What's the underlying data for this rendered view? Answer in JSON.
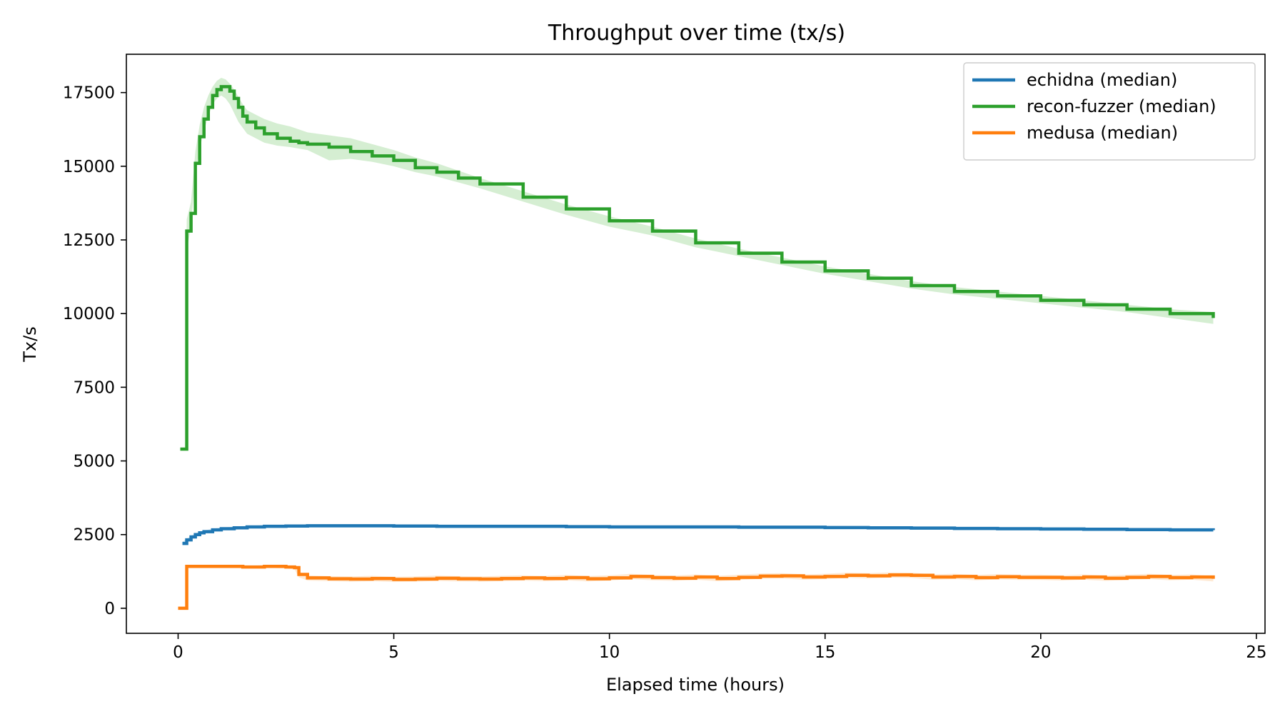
{
  "chart_data": {
    "type": "line",
    "title": "Throughput over time (tx/s)",
    "xlabel": "Elapsed time (hours)",
    "ylabel": "Tx/s",
    "xlim": [
      -1.2,
      25.2
    ],
    "ylim": [
      -850,
      18800
    ],
    "xticks": [
      0,
      5,
      10,
      15,
      20,
      25
    ],
    "yticks": [
      0,
      2500,
      5000,
      7500,
      10000,
      12500,
      15000,
      17500
    ],
    "grid": false,
    "legend_position": "top-right",
    "series": [
      {
        "name": "echidna (median)",
        "color": "#1f77b4",
        "band_color": "#9ecae1",
        "x": [
          0.1,
          0.2,
          0.3,
          0.4,
          0.5,
          0.6,
          0.8,
          1.0,
          1.3,
          1.6,
          2.0,
          2.5,
          3.0,
          4.0,
          5.0,
          6.0,
          7.0,
          8.0,
          9.0,
          10.0,
          11.0,
          12.0,
          13.0,
          14.0,
          15.0,
          16.0,
          17.0,
          18.0,
          19.0,
          20.0,
          21.0,
          22.0,
          23.0,
          24.0
        ],
        "y": [
          2200,
          2320,
          2420,
          2500,
          2560,
          2600,
          2660,
          2700,
          2730,
          2760,
          2780,
          2790,
          2800,
          2800,
          2790,
          2780,
          2780,
          2780,
          2770,
          2760,
          2760,
          2760,
          2750,
          2750,
          2740,
          2730,
          2720,
          2710,
          2700,
          2690,
          2680,
          2670,
          2660,
          2650
        ],
        "lower": [
          2150,
          2280,
          2380,
          2460,
          2520,
          2560,
          2620,
          2660,
          2690,
          2720,
          2740,
          2750,
          2760,
          2760,
          2750,
          2740,
          2740,
          2740,
          2730,
          2720,
          2720,
          2720,
          2710,
          2710,
          2700,
          2690,
          2680,
          2670,
          2660,
          2650,
          2640,
          2630,
          2620,
          2610
        ],
        "upper": [
          2250,
          2360,
          2460,
          2540,
          2600,
          2640,
          2700,
          2740,
          2770,
          2800,
          2820,
          2830,
          2840,
          2840,
          2830,
          2830,
          2830,
          2830,
          2820,
          2810,
          2810,
          2810,
          2800,
          2800,
          2790,
          2780,
          2770,
          2760,
          2750,
          2740,
          2730,
          2720,
          2710,
          2700
        ]
      },
      {
        "name": "recon-fuzzer (median)",
        "color": "#2ca02c",
        "band_color": "#a1d99b",
        "x": [
          0.05,
          0.15,
          0.2,
          0.3,
          0.4,
          0.5,
          0.6,
          0.7,
          0.8,
          0.9,
          1.0,
          1.1,
          1.2,
          1.3,
          1.4,
          1.5,
          1.6,
          1.8,
          2.0,
          2.3,
          2.6,
          2.8,
          3.0,
          3.5,
          4.0,
          4.5,
          5.0,
          5.5,
          6.0,
          6.5,
          7.0,
          8.0,
          9.0,
          10.0,
          11.0,
          12.0,
          13.0,
          14.0,
          15.0,
          16.0,
          17.0,
          18.0,
          19.0,
          20.0,
          21.0,
          22.0,
          23.0,
          24.0
        ],
        "y": [
          5400,
          5400,
          12800,
          13400,
          15100,
          16000,
          16600,
          17000,
          17400,
          17600,
          17700,
          17700,
          17550,
          17300,
          17000,
          16700,
          16500,
          16300,
          16100,
          15950,
          15850,
          15800,
          15750,
          15650,
          15500,
          15350,
          15200,
          14950,
          14800,
          14600,
          14400,
          13950,
          13550,
          13150,
          12800,
          12400,
          12050,
          11750,
          11450,
          11200,
          10950,
          10750,
          10600,
          10450,
          10300,
          10150,
          10000,
          9850
        ],
        "lower": [
          5400,
          5400,
          12100,
          13000,
          14700,
          15600,
          16200,
          16700,
          17100,
          17300,
          17400,
          17300,
          17100,
          16800,
          16500,
          16300,
          16100,
          15950,
          15800,
          15700,
          15650,
          15600,
          15550,
          15200,
          15250,
          15150,
          15000,
          14800,
          14650,
          14450,
          14250,
          13800,
          13350,
          12950,
          12650,
          12250,
          11950,
          11650,
          11350,
          11100,
          10850,
          10650,
          10500,
          10350,
          10200,
          10050,
          9850,
          9650
        ],
        "upper": [
          5400,
          5400,
          13200,
          13800,
          15500,
          16400,
          17000,
          17400,
          17700,
          17900,
          18000,
          17950,
          17800,
          17600,
          17350,
          17100,
          16900,
          16750,
          16600,
          16450,
          16350,
          16250,
          16150,
          16050,
          15950,
          15750,
          15550,
          15300,
          15100,
          14850,
          14600,
          14150,
          13700,
          13300,
          12950,
          12550,
          12200,
          11900,
          11600,
          11350,
          11100,
          10900,
          10750,
          10600,
          10450,
          10300,
          10150,
          10050
        ]
      },
      {
        "name": "medusa (median)",
        "color": "#ff7f0e",
        "band_color": "#fdd0a2",
        "x": [
          0.0,
          0.15,
          0.2,
          0.5,
          1.0,
          1.5,
          2.0,
          2.5,
          2.7,
          2.8,
          3.0,
          3.5,
          4.0,
          4.5,
          5.0,
          5.5,
          6.0,
          6.5,
          7.0,
          7.5,
          8.0,
          8.5,
          9.0,
          9.5,
          10.0,
          10.5,
          11.0,
          11.5,
          12.0,
          12.5,
          13.0,
          13.5,
          14.0,
          14.5,
          15.0,
          15.5,
          16.0,
          16.5,
          17.0,
          17.5,
          18.0,
          18.5,
          19.0,
          19.5,
          20.0,
          20.5,
          21.0,
          21.5,
          22.0,
          22.5,
          23.0,
          23.5,
          24.0
        ],
        "y": [
          0,
          0,
          1420,
          1420,
          1420,
          1400,
          1420,
          1400,
          1380,
          1150,
          1030,
          1000,
          990,
          1010,
          980,
          990,
          1020,
          1000,
          990,
          1010,
          1030,
          1010,
          1040,
          1000,
          1030,
          1080,
          1040,
          1020,
          1060,
          1010,
          1050,
          1090,
          1100,
          1060,
          1080,
          1120,
          1100,
          1130,
          1120,
          1060,
          1080,
          1040,
          1070,
          1050,
          1050,
          1030,
          1060,
          1020,
          1050,
          1080,
          1040,
          1060,
          1000
        ],
        "lower": [
          0,
          0,
          1380,
          1380,
          1380,
          1360,
          1380,
          1350,
          1320,
          1050,
          940,
          920,
          900,
          920,
          890,
          900,
          930,
          910,
          900,
          920,
          940,
          920,
          950,
          910,
          940,
          990,
          950,
          930,
          970,
          920,
          960,
          1000,
          1010,
          970,
          990,
          1030,
          1010,
          1040,
          1030,
          970,
          990,
          950,
          980,
          960,
          960,
          940,
          970,
          930,
          960,
          990,
          950,
          970,
          910
        ],
        "upper": [
          0,
          0,
          1460,
          1460,
          1460,
          1440,
          1460,
          1450,
          1440,
          1250,
          1120,
          1090,
          1080,
          1100,
          1070,
          1080,
          1110,
          1090,
          1080,
          1100,
          1120,
          1100,
          1130,
          1090,
          1120,
          1170,
          1130,
          1110,
          1150,
          1100,
          1140,
          1180,
          1190,
          1150,
          1170,
          1210,
          1190,
          1220,
          1210,
          1150,
          1170,
          1130,
          1160,
          1140,
          1140,
          1120,
          1150,
          1110,
          1140,
          1170,
          1130,
          1150,
          1090
        ]
      }
    ]
  }
}
